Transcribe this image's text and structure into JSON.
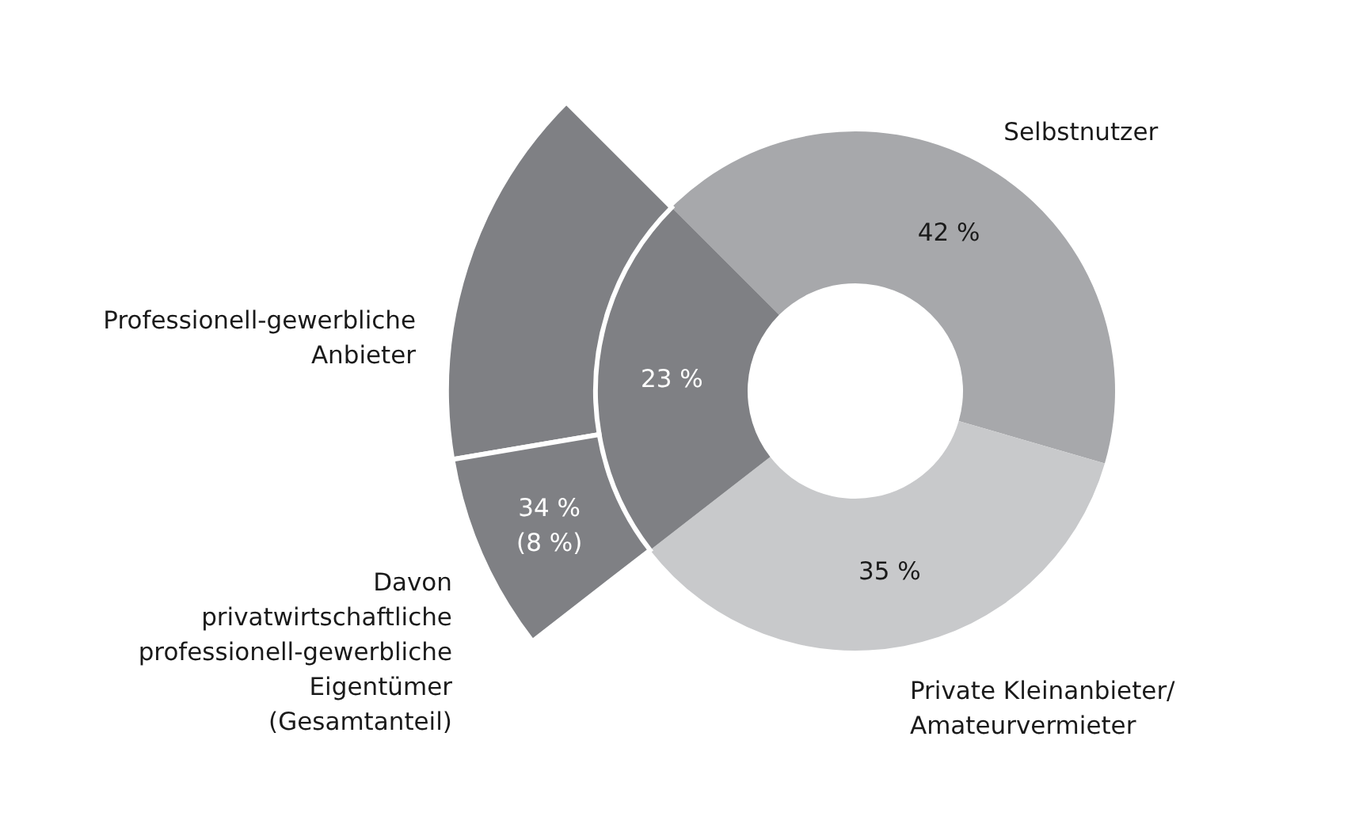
{
  "chart_data": [
    {
      "type": "donut",
      "categories": [
        "Selbstnutzer",
        "Private Kleinanbieter/\nAmateurvermieter",
        "Professionell-gewerbliche\nAnbieter"
      ],
      "values": [
        42,
        35,
        23
      ],
      "colors": [
        "#a7a8ab",
        "#c8c9cb",
        "#7f8084"
      ],
      "value_labels": [
        "42 %",
        "35 %",
        "23 %"
      ]
    },
    {
      "type": "donut",
      "categories": [
        null,
        "Davon\nprivatwirtschaftliche\nprofessionell-gewerbliche\nEigentümer\n(Gesamtanteil)"
      ],
      "values": [
        66,
        34
      ],
      "colors": [
        "#7f8084",
        "#7f8084"
      ],
      "value_labels": [
        null,
        "34 %\n(8 %)"
      ]
    }
  ]
}
